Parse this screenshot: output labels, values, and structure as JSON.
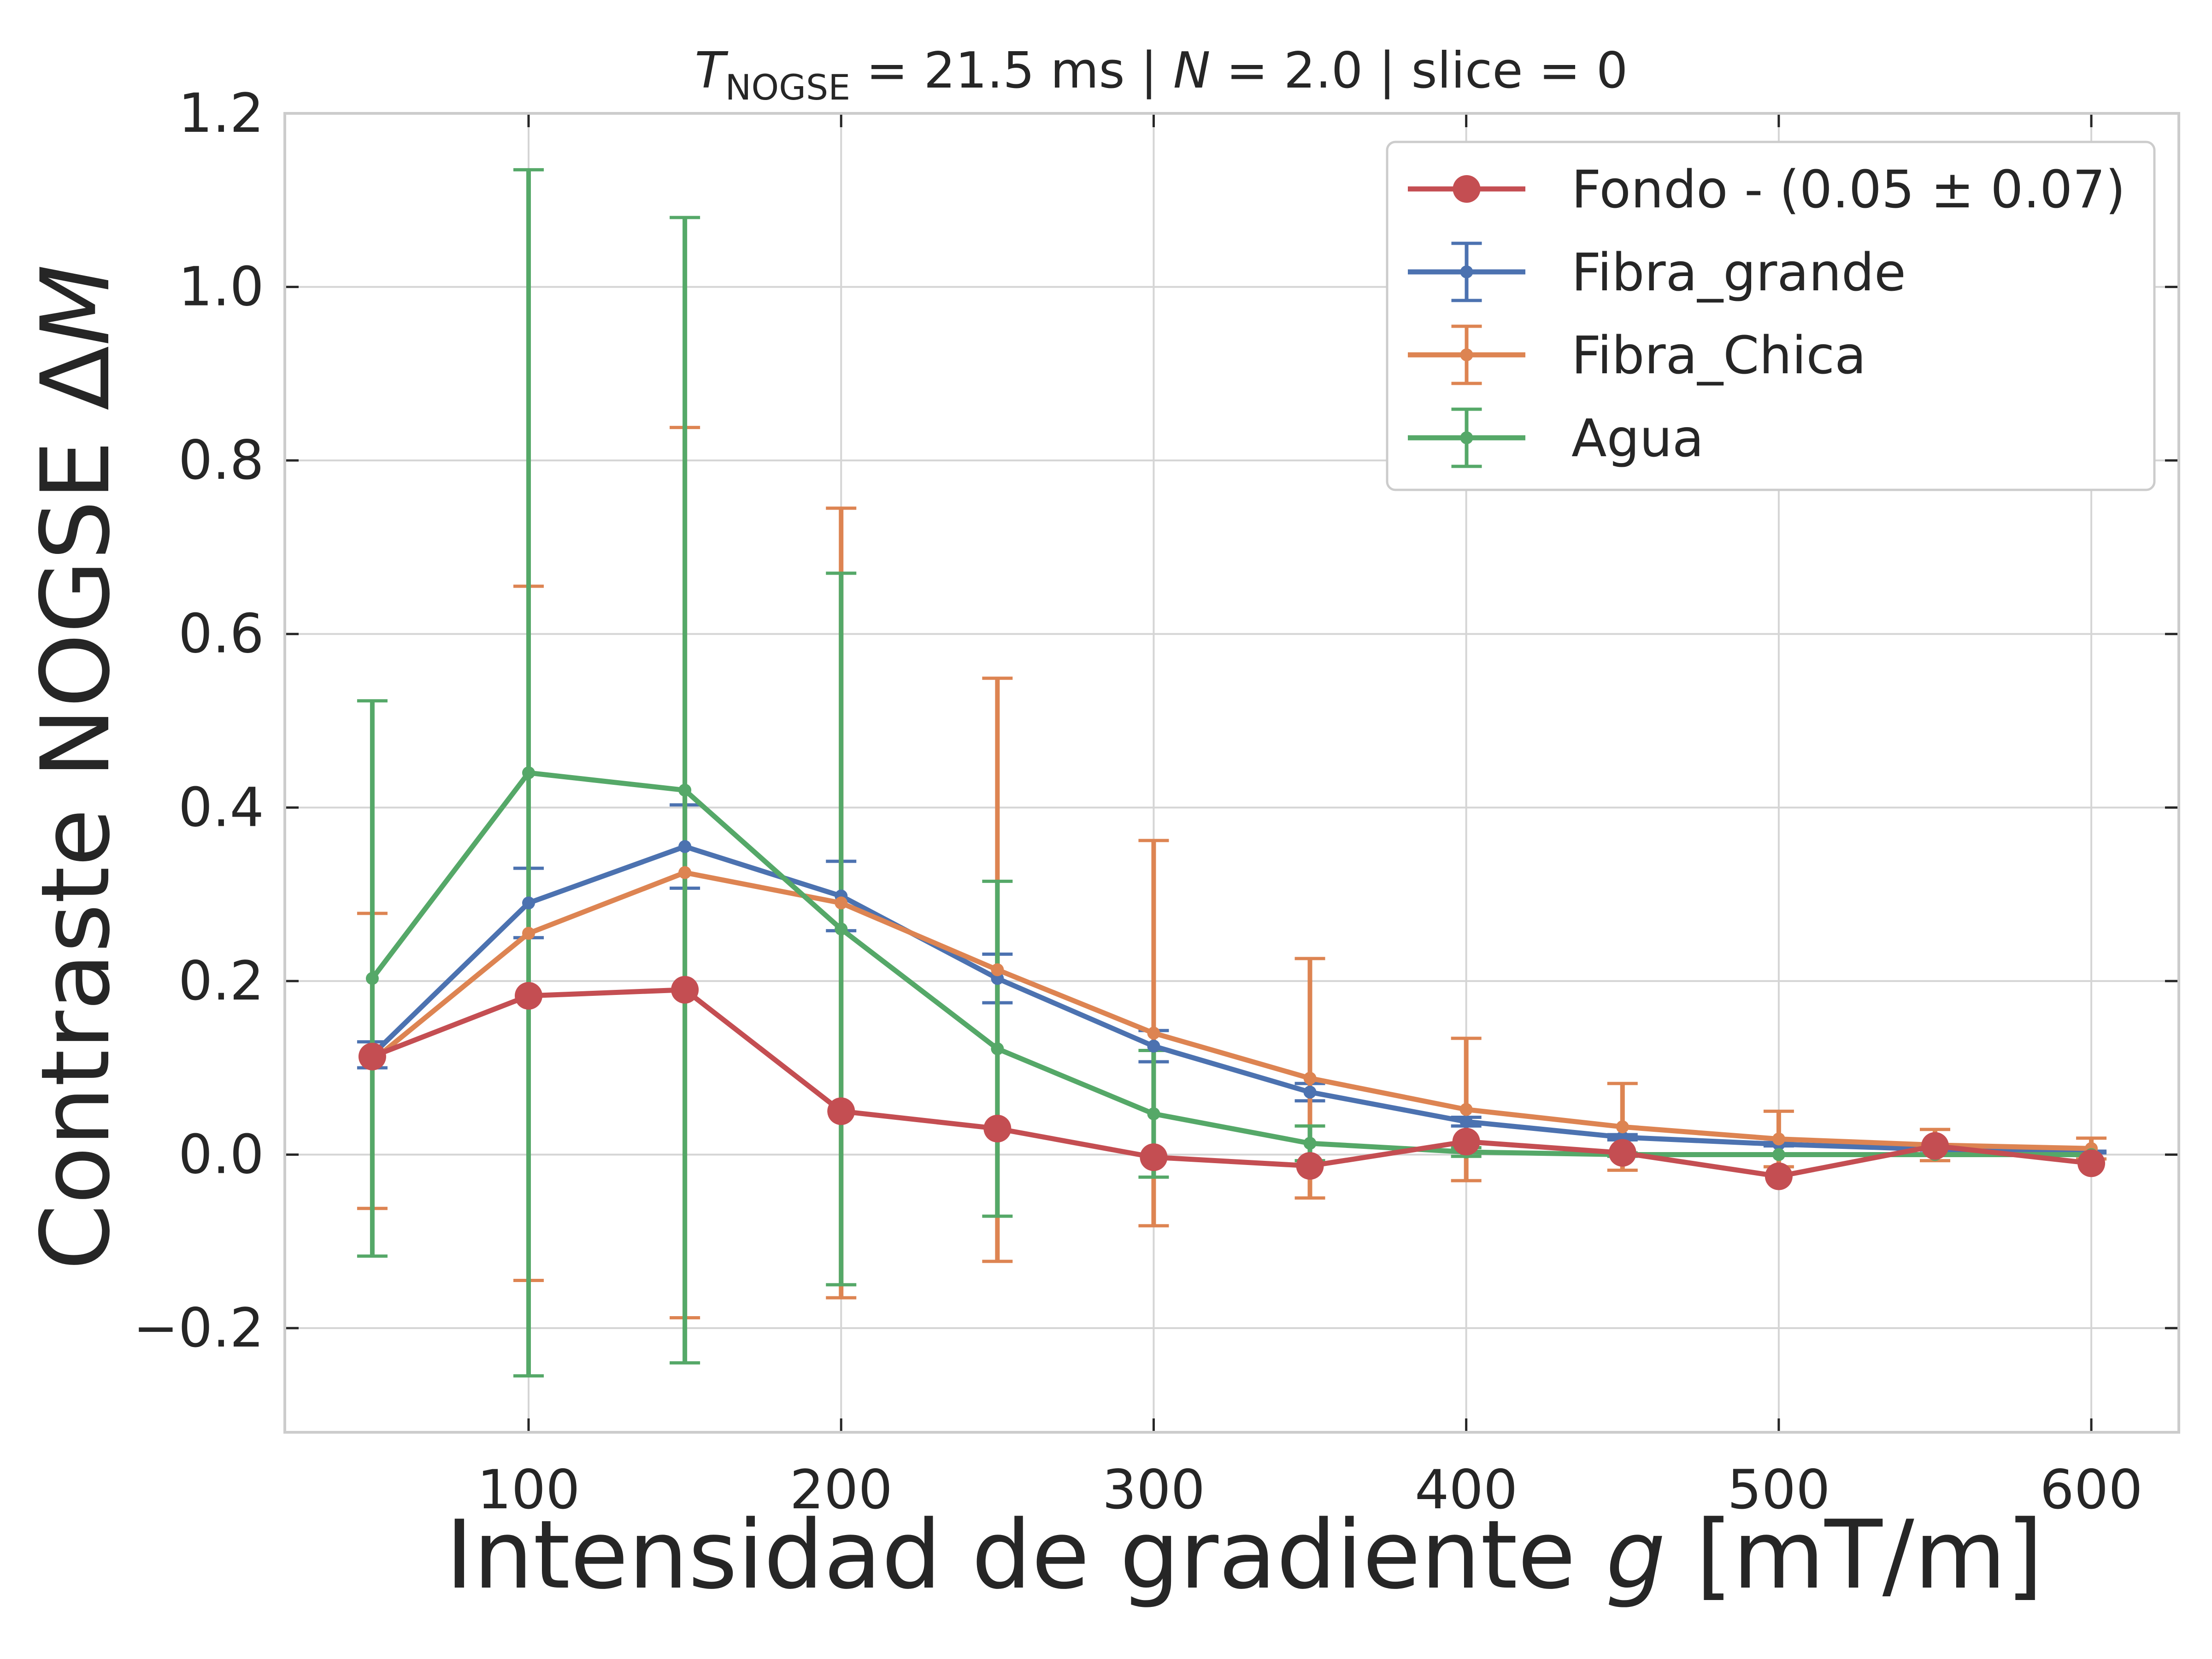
{
  "chart_data": {
    "type": "line",
    "title": {
      "prefix_italic": "T",
      "prefix_sub": "NOGSE",
      "part1": " = 21.5 ms | ",
      "n_italic": "N",
      "part2": " = 2.0 | slice = 0"
    },
    "xlabel": {
      "text": "Intensidad de gradiente ",
      "italic": "g",
      "unit": " [mT/m]"
    },
    "ylabel": {
      "text": "Contraste NOGSE Δ",
      "italic": "M"
    },
    "xlim": [
      22,
      628
    ],
    "ylim": [
      -0.32,
      1.2
    ],
    "xticks": [
      100,
      200,
      300,
      400,
      500,
      600
    ],
    "yticks": [
      -0.2,
      0.0,
      0.2,
      0.4,
      0.6,
      0.8,
      1.0,
      1.2
    ],
    "ytick_labels": [
      "−0.2",
      "0.0",
      "0.2",
      "0.4",
      "0.6",
      "0.8",
      "1.0",
      "1.2"
    ],
    "grid": true,
    "legend_position": "top-right",
    "x": [
      50,
      100,
      150,
      200,
      250,
      300,
      350,
      400,
      450,
      500,
      550,
      600
    ],
    "series": [
      {
        "name": "Fondo - (0.05 ± 0.07)",
        "color": "#c44e52",
        "marker": "large-circle",
        "values": [
          0.113,
          0.183,
          0.19,
          0.05,
          0.03,
          -0.003,
          -0.013,
          0.015,
          0.002,
          -0.025,
          0.01,
          -0.01
        ]
      },
      {
        "name": "Fibra_grande",
        "color": "#4c72b0",
        "marker": "small-circle",
        "values": [
          0.115,
          0.29,
          0.355,
          0.298,
          0.203,
          0.125,
          0.072,
          0.038,
          0.02,
          0.012,
          0.006,
          0.003
        ],
        "errors": [
          0.015,
          0.04,
          0.048,
          0.04,
          0.028,
          0.018,
          0.01,
          0.005,
          0.003,
          0.002,
          0.001,
          0.001
        ]
      },
      {
        "name": "Fibra_Chica",
        "color": "#dd8452",
        "marker": "small-circle",
        "values": [
          0.108,
          0.255,
          0.325,
          0.29,
          0.213,
          0.14,
          0.088,
          0.052,
          0.032,
          0.018,
          0.011,
          0.007
        ],
        "errors": [
          0.17,
          0.4,
          0.513,
          0.455,
          0.336,
          0.222,
          0.138,
          0.082,
          0.05,
          0.032,
          0.018,
          0.012
        ]
      },
      {
        "name": "Agua",
        "color": "#55a868",
        "marker": "small-circle",
        "values": [
          0.203,
          0.44,
          0.42,
          0.26,
          0.122,
          0.047,
          0.013,
          0.003,
          0.0,
          0.0,
          0.0,
          0.0
        ],
        "errors": [
          0.32,
          0.695,
          0.66,
          0.41,
          0.193,
          0.073,
          0.02,
          0.005,
          0.002,
          0.001,
          0.0,
          0.0
        ]
      }
    ]
  }
}
